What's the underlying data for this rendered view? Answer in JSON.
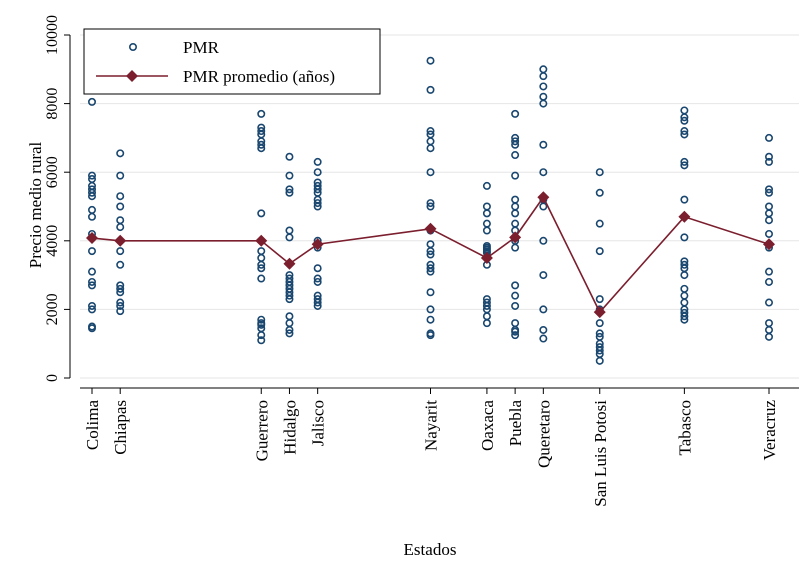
{
  "chart_data": {
    "type": "scatter",
    "title": "",
    "xlabel": "Estados",
    "ylabel": "Precio medio rural",
    "ylim": [
      0,
      10000
    ],
    "yticks": [
      0,
      2000,
      4000,
      6000,
      8000,
      10000
    ],
    "grid": true,
    "legend_position": "top-left",
    "categories": [
      "Colima",
      "Chiapas",
      "Guerrero",
      "Hidalgo",
      "Jalisco",
      "Nayarit",
      "Oaxaca",
      "Puebla",
      "Queretaro",
      "San Luis Potosi",
      "Tabasco",
      "Veracruz"
    ],
    "category_positions": [
      1,
      2,
      7,
      8,
      9,
      13,
      15,
      16,
      17,
      19,
      22,
      25
    ],
    "series": [
      {
        "name": "PMR",
        "kind": "scatter",
        "color": "#1a476f",
        "points": [
          [
            1450,
            1500,
            2000,
            2100,
            2700,
            2800,
            3100,
            3700,
            4200,
            4700,
            4900,
            5300,
            5400,
            5500,
            5600,
            5800,
            5900,
            8050
          ],
          [
            1950,
            2100,
            2200,
            2500,
            2600,
            2700,
            3300,
            3700,
            4000,
            4400,
            4600,
            5000,
            5300,
            5900,
            6550
          ],
          [
            1100,
            1250,
            1450,
            1550,
            1600,
            1700,
            2900,
            3200,
            3300,
            3500,
            3700,
            4000,
            4800,
            6700,
            6800,
            6900,
            7100,
            7200,
            7300,
            7700
          ],
          [
            1300,
            1400,
            1600,
            1800,
            2300,
            2400,
            2500,
            2600,
            2700,
            2800,
            2900,
            3000,
            4100,
            4300,
            5400,
            5500,
            5900,
            6450
          ],
          [
            2100,
            2200,
            2300,
            2400,
            2800,
            2900,
            3200,
            3800,
            4000,
            5000,
            5100,
            5200,
            5400,
            5500,
            5600,
            5700,
            6000,
            6300
          ],
          [
            1250,
            1300,
            1700,
            2000,
            2500,
            3100,
            3200,
            3300,
            3600,
            3700,
            3900,
            4300,
            5000,
            5100,
            6000,
            6700,
            6900,
            7100,
            7200,
            8400,
            9250
          ],
          [
            1600,
            1800,
            2000,
            2100,
            2200,
            2300,
            3300,
            3500,
            3650,
            3700,
            3750,
            3800,
            3850,
            4300,
            4500,
            4800,
            5000,
            5600
          ],
          [
            1250,
            1350,
            1400,
            1600,
            2100,
            2400,
            2700,
            3800,
            4000,
            4300,
            4500,
            4800,
            5000,
            5200,
            5900,
            6500,
            6800,
            6900,
            7000,
            7700
          ],
          [
            1150,
            1400,
            2000,
            3000,
            4000,
            5000,
            5200,
            6000,
            6800,
            8000,
            8200,
            8500,
            8800,
            9000
          ],
          [
            500,
            700,
            800,
            900,
            1000,
            1200,
            1300,
            1600,
            2000,
            2300,
            3700,
            4500,
            5400,
            6000
          ],
          [
            1700,
            1800,
            1900,
            2000,
            2200,
            2400,
            2600,
            3000,
            3200,
            3300,
            3400,
            4100,
            5200,
            6200,
            6300,
            7100,
            7200,
            7500,
            7600,
            7800
          ],
          [
            1200,
            1400,
            1600,
            2200,
            2800,
            3100,
            3800,
            3900,
            4200,
            4600,
            4800,
            5000,
            5400,
            5500,
            6300,
            6450,
            7000
          ]
        ]
      },
      {
        "name": "PMR promedio (años)",
        "kind": "line",
        "color": "#7b1e2e",
        "values": [
          4080,
          4000,
          4000,
          3330,
          3900,
          4350,
          3500,
          4100,
          5270,
          1920,
          4700,
          3900
        ]
      }
    ]
  }
}
